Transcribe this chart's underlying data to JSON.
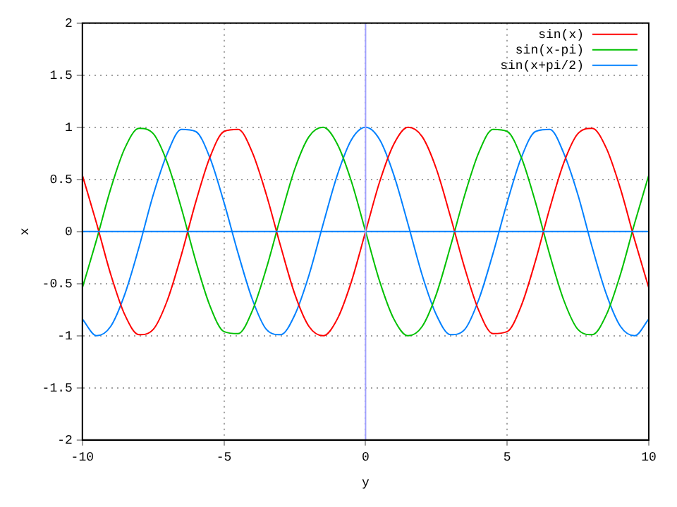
{
  "chart_data": {
    "type": "line",
    "xlabel": "y",
    "ylabel": "x",
    "xlim": [
      -10,
      10
    ],
    "xticks": [
      -10,
      -5,
      0,
      5,
      10
    ],
    "ylim": [
      -2,
      2
    ],
    "yticks": [
      -2,
      {
        "value": -1.5,
        "label": "-1.5"
      },
      -1,
      {
        "value": -0.5,
        "label": "-0.5"
      },
      0,
      0.5,
      1,
      1.5,
      2
    ],
    "grid": true,
    "legend": "top right",
    "marker": "none",
    "line_style": "solid",
    "x": [
      -10,
      -9.5,
      -9,
      -8.5,
      -8,
      -7.5,
      -7,
      -6.5,
      -6,
      -5.5,
      -5,
      -4.5,
      -4,
      -3.5,
      -3,
      -2.5,
      -2,
      -1.5,
      -1,
      -0.5,
      0,
      0.5,
      1,
      1.5,
      2,
      2.5,
      3,
      3.5,
      4,
      4.5,
      5,
      5.5,
      6,
      6.5,
      7,
      7.5,
      8,
      8.5,
      9,
      9.5,
      10
    ],
    "series": [
      {
        "name": "sin(x)",
        "color": "#ff0000",
        "values": [
          0.54,
          0.08,
          -0.41,
          -0.8,
          -0.99,
          -0.94,
          -0.66,
          -0.22,
          0.28,
          0.71,
          0.96,
          0.98,
          0.76,
          0.35,
          -0.14,
          -0.6,
          -0.91,
          -1,
          -0.84,
          -0.48,
          0,
          0.48,
          0.84,
          1,
          0.91,
          0.6,
          0.14,
          -0.35,
          -0.76,
          -0.98,
          -0.96,
          -0.71,
          -0.28,
          0.22,
          0.66,
          0.94,
          0.99,
          0.8,
          0.41,
          -0.08,
          -0.54
        ]
      },
      {
        "name": "sin(x-pi)",
        "color": "#00c000",
        "values": [
          -0.54,
          -0.08,
          0.41,
          0.8,
          0.99,
          0.94,
          0.66,
          0.22,
          -0.28,
          -0.71,
          -0.96,
          -0.98,
          -0.76,
          -0.35,
          0.14,
          0.6,
          0.91,
          1,
          0.84,
          0.48,
          0,
          -0.48,
          -0.84,
          -1,
          -0.91,
          -0.6,
          -0.14,
          0.35,
          0.76,
          0.98,
          0.96,
          0.71,
          0.28,
          -0.22,
          -0.66,
          -0.94,
          -0.99,
          -0.8,
          -0.41,
          0.08,
          0.54
        ]
      },
      {
        "name": "sin(x+pi/2)",
        "color": "#0080ff",
        "values": [
          -0.84,
          -1,
          -0.91,
          -0.6,
          -0.15,
          0.35,
          0.75,
          0.98,
          0.96,
          0.71,
          0.28,
          -0.21,
          -0.65,
          -0.94,
          -0.99,
          -0.8,
          -0.42,
          0.07,
          0.54,
          0.88,
          1,
          0.88,
          0.54,
          0.07,
          -0.42,
          -0.8,
          -0.99,
          -0.94,
          -0.65,
          -0.21,
          0.28,
          0.71,
          0.96,
          0.98,
          0.75,
          0.35,
          -0.15,
          -0.6,
          -0.91,
          -1,
          -0.84
        ]
      }
    ],
    "ref_lines": [
      {
        "axis": "y",
        "value": 0,
        "color": "#0080ff"
      },
      {
        "axis": "x",
        "value": 0,
        "color": "#a0a0ff"
      }
    ]
  }
}
